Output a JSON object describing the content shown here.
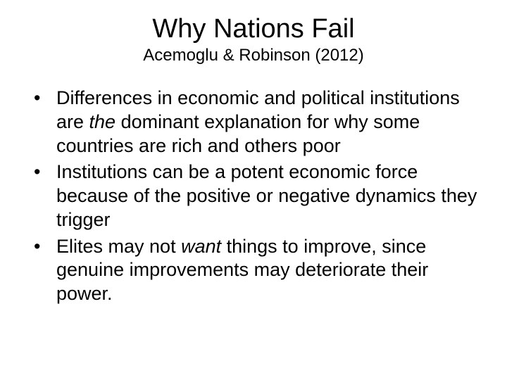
{
  "slide": {
    "title": "Why Nations Fail",
    "subtitle": "Acemoglu & Robinson (2012)",
    "bullets": [
      {
        "segments": [
          {
            "text": "Differences in economic and political institutions are ",
            "italic": false
          },
          {
            "text": "the",
            "italic": true
          },
          {
            "text": " dominant explanation for why some countries are rich and others poor",
            "italic": false
          }
        ]
      },
      {
        "segments": [
          {
            "text": "Institutions can be a potent economic force because of the positive or negative dynamics they trigger",
            "italic": false
          }
        ]
      },
      {
        "segments": [
          {
            "text": "Elites may not ",
            "italic": false
          },
          {
            "text": "want",
            "italic": true
          },
          {
            "text": " things to improve, since genuine improvements may deteriorate their power.",
            "italic": false
          }
        ]
      }
    ],
    "style": {
      "background_color": "#ffffff",
      "text_color": "#000000",
      "title_fontsize": 38,
      "subtitle_fontsize": 24,
      "body_fontsize": 27,
      "font_family": "Arial"
    }
  }
}
